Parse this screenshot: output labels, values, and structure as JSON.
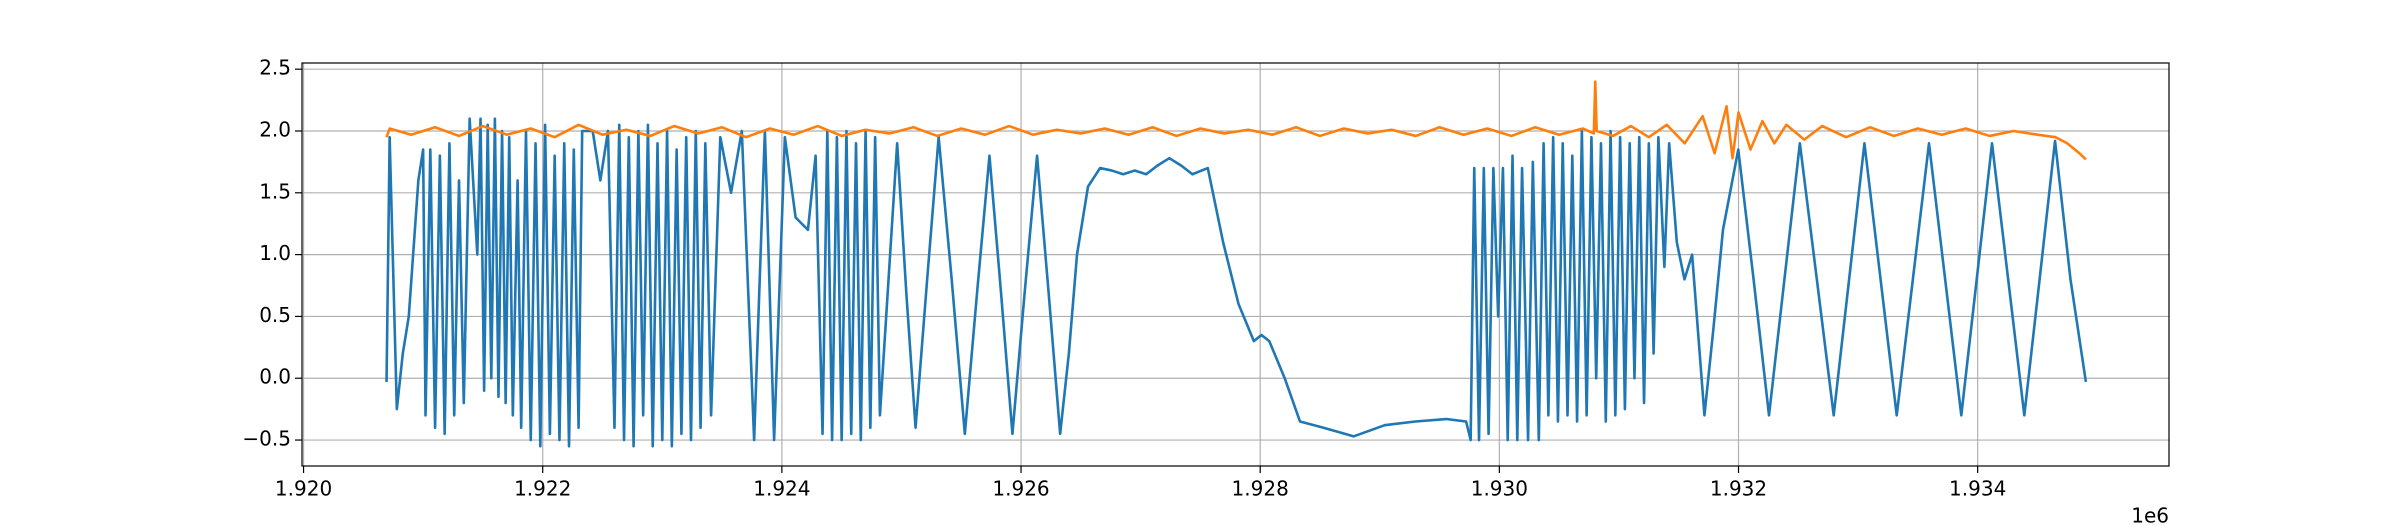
{
  "chart_data": {
    "type": "line",
    "grid": true,
    "xlim": [
      1919987,
      1935600
    ],
    "ylim": [
      -0.71,
      2.55
    ],
    "xticks": [
      {
        "value": 1920000,
        "label": "1.920"
      },
      {
        "value": 1922000,
        "label": "1.922"
      },
      {
        "value": 1924000,
        "label": "1.924"
      },
      {
        "value": 1926000,
        "label": "1.926"
      },
      {
        "value": 1928000,
        "label": "1.928"
      },
      {
        "value": 1930000,
        "label": "1.930"
      },
      {
        "value": 1932000,
        "label": "1.932"
      },
      {
        "value": 1934000,
        "label": "1.934"
      }
    ],
    "x_offset_label": "1e6",
    "yticks": [
      {
        "value": -0.5,
        "label": "−0.5"
      },
      {
        "value": 0,
        "label": "0.0"
      },
      0.5,
      {
        "value": 1,
        "label": "1.0"
      },
      1.5,
      {
        "value": 2,
        "label": "2.0"
      },
      2.5
    ],
    "series": [
      {
        "color": "#1f77b4",
        "x": [
          1920694,
          1920720,
          1920780,
          1920830,
          1920880,
          1920960,
          1921000,
          1921020,
          1921060,
          1921100,
          1921140,
          1921180,
          1921220,
          1921260,
          1921300,
          1921340,
          1921389,
          1921453,
          1921480,
          1921510,
          1921540,
          1921570,
          1921600,
          1921630,
          1921660,
          1921690,
          1921720,
          1921750,
          1921790,
          1921820,
          1921860,
          1921900,
          1921940,
          1921980,
          1922020,
          1922060,
          1922100,
          1922140,
          1922180,
          1922220,
          1922260,
          1922300,
          1922330,
          1922418,
          1922482,
          1922546,
          1922600,
          1922640,
          1922680,
          1922720,
          1922760,
          1922800,
          1922840,
          1922880,
          1922920,
          1922960,
          1923000,
          1923040,
          1923080,
          1923120,
          1923160,
          1923200,
          1923240,
          1923280,
          1923320,
          1923360,
          1923408,
          1923485,
          1923575,
          1923665,
          1923768,
          1923858,
          1923935,
          1924025,
          1924115,
          1924218,
          1924282,
          1924340,
          1924380,
          1924420,
          1924460,
          1924500,
          1924540,
          1924580,
          1924620,
          1924660,
          1924700,
          1924740,
          1924780,
          1924820,
          1924964,
          1925040,
          1925118,
          1925215,
          1925311,
          1925420,
          1925530,
          1925633,
          1925736,
          1925832,
          1925928,
          1926031,
          1926134,
          1926230,
          1926327,
          1926400,
          1926468,
          1926560,
          1926661,
          1926760,
          1926854,
          1926950,
          1927047,
          1927140,
          1927240,
          1927340,
          1927433,
          1927562,
          1927690,
          1927819,
          1927947,
          1928010,
          1928076,
          1928205,
          1928333,
          1928526,
          1928783,
          1929041,
          1929298,
          1929555,
          1929722,
          1929760,
          1929790,
          1929830,
          1929870,
          1929910,
          1929950,
          1929990,
          1930030,
          1930070,
          1930110,
          1930150,
          1930190,
          1930240,
          1930280,
          1930330,
          1930370,
          1930410,
          1930450,
          1930490,
          1930530,
          1930570,
          1930610,
          1930650,
          1930690,
          1930730,
          1930770,
          1930810,
          1930850,
          1930890,
          1930930,
          1930970,
          1931010,
          1931050,
          1931090,
          1931130,
          1931170,
          1931210,
          1931250,
          1931290,
          1931330,
          1931380,
          1931420,
          1931484,
          1931548,
          1931612,
          1931715,
          1931790,
          1931870,
          1931998,
          1932126,
          1932255,
          1932384,
          1932513,
          1932655,
          1932796,
          1932925,
          1933053,
          1933188,
          1933323,
          1933458,
          1933593,
          1933728,
          1933863,
          1933992,
          1934120,
          1934255,
          1934390,
          1934518,
          1934647,
          1934776,
          1934905
        ],
        "values": [
          -0.03,
          1.95,
          -0.25,
          0.2,
          0.5,
          1.6,
          1.85,
          -0.3,
          1.85,
          -0.4,
          1.8,
          -0.45,
          1.9,
          -0.3,
          1.6,
          -0.2,
          2.1,
          1.0,
          2.1,
          -0.1,
          2.05,
          0.0,
          2.1,
          -0.15,
          2.0,
          -0.2,
          1.95,
          -0.3,
          1.6,
          -0.4,
          2.0,
          -0.5,
          1.9,
          -0.55,
          2.05,
          -0.45,
          1.8,
          -0.5,
          1.9,
          -0.55,
          1.85,
          -0.4,
          2.0,
          2.0,
          1.6,
          2.0,
          -0.4,
          2.05,
          -0.5,
          1.95,
          -0.55,
          2.0,
          -0.3,
          2.05,
          -0.55,
          1.9,
          -0.5,
          2.0,
          -0.55,
          1.85,
          -0.45,
          1.95,
          -0.5,
          2.0,
          -0.4,
          1.9,
          -0.3,
          1.95,
          1.5,
          2.0,
          -0.5,
          2.0,
          -0.5,
          1.95,
          1.3,
          1.2,
          1.8,
          -0.45,
          2.0,
          -0.5,
          1.95,
          -0.5,
          2.0,
          -0.45,
          1.9,
          -0.5,
          2.0,
          -0.4,
          1.95,
          -0.3,
          1.9,
          0.7,
          -0.4,
          0.8,
          1.95,
          0.8,
          -0.45,
          0.7,
          1.8,
          0.7,
          -0.45,
          0.7,
          1.8,
          0.7,
          -0.45,
          0.2,
          1.0,
          1.55,
          1.7,
          1.68,
          1.65,
          1.68,
          1.65,
          1.72,
          1.78,
          1.72,
          1.65,
          1.7,
          1.1,
          0.6,
          0.3,
          0.35,
          0.3,
          0.0,
          -0.35,
          -0.4,
          -0.47,
          -0.38,
          -0.35,
          -0.33,
          -0.35,
          -0.5,
          1.7,
          -0.5,
          1.7,
          -0.45,
          1.7,
          0.5,
          1.7,
          -0.5,
          1.8,
          -0.5,
          1.7,
          -0.5,
          1.75,
          -0.5,
          1.9,
          -0.3,
          1.95,
          -0.35,
          1.9,
          -0.3,
          1.8,
          -0.35,
          2.0,
          -0.3,
          1.95,
          0.0,
          1.9,
          -0.35,
          2.0,
          -0.3,
          1.95,
          -0.25,
          1.9,
          0.0,
          1.95,
          -0.2,
          1.9,
          0.2,
          1.95,
          0.9,
          1.9,
          1.1,
          0.8,
          1.0,
          -0.3,
          0.4,
          1.2,
          1.85,
          0.8,
          -0.3,
          0.8,
          1.9,
          0.8,
          -0.3,
          0.8,
          1.9,
          0.8,
          -0.3,
          0.8,
          1.9,
          0.8,
          -0.3,
          0.8,
          1.9,
          0.8,
          -0.3,
          0.8,
          1.92,
          0.8,
          -0.03
        ]
      },
      {
        "color": "#ff7f0e",
        "x": [
          1920694,
          1920720,
          1920900,
          1921100,
          1921300,
          1921500,
          1921700,
          1921900,
          1922100,
          1922300,
          1922500,
          1922700,
          1922900,
          1923100,
          1923300,
          1923500,
          1923700,
          1923900,
          1924100,
          1924300,
          1924500,
          1924700,
          1924900,
          1925100,
          1925300,
          1925500,
          1925700,
          1925900,
          1926100,
          1926300,
          1926500,
          1926700,
          1926900,
          1927100,
          1927300,
          1927500,
          1927700,
          1927900,
          1928100,
          1928300,
          1928500,
          1928700,
          1928900,
          1929100,
          1929300,
          1929500,
          1929700,
          1929900,
          1930100,
          1930300,
          1930500,
          1930700,
          1930790,
          1930802,
          1930814,
          1930950,
          1931100,
          1931250,
          1931400,
          1931550,
          1931700,
          1931800,
          1931900,
          1931950,
          1932000,
          1932100,
          1932200,
          1932300,
          1932400,
          1932550,
          1932700,
          1932900,
          1933100,
          1933300,
          1933500,
          1933700,
          1933900,
          1934100,
          1934300,
          1934500,
          1934650,
          1934750,
          1934850,
          1934905
        ],
        "values": [
          1.95,
          2.02,
          1.97,
          2.03,
          1.96,
          2.04,
          1.97,
          2.02,
          1.95,
          2.05,
          1.97,
          2.01,
          1.96,
          2.04,
          1.98,
          2.03,
          1.95,
          2.02,
          1.97,
          2.04,
          1.96,
          2.01,
          1.98,
          2.03,
          1.96,
          2.02,
          1.97,
          2.04,
          1.97,
          2.01,
          1.98,
          2.02,
          1.97,
          2.03,
          1.96,
          2.02,
          1.98,
          2.01,
          1.97,
          2.03,
          1.96,
          2.02,
          1.98,
          2.01,
          1.96,
          2.03,
          1.97,
          2.02,
          1.96,
          2.03,
          1.97,
          2.02,
          1.98,
          2.4,
          2.0,
          1.96,
          2.04,
          1.95,
          2.05,
          1.9,
          2.12,
          1.82,
          2.2,
          1.78,
          2.15,
          1.85,
          2.08,
          1.9,
          2.05,
          1.93,
          2.04,
          1.95,
          2.03,
          1.96,
          2.02,
          1.97,
          2.02,
          1.96,
          2.0,
          1.97,
          1.95,
          1.9,
          1.82,
          1.77
        ]
      }
    ]
  }
}
